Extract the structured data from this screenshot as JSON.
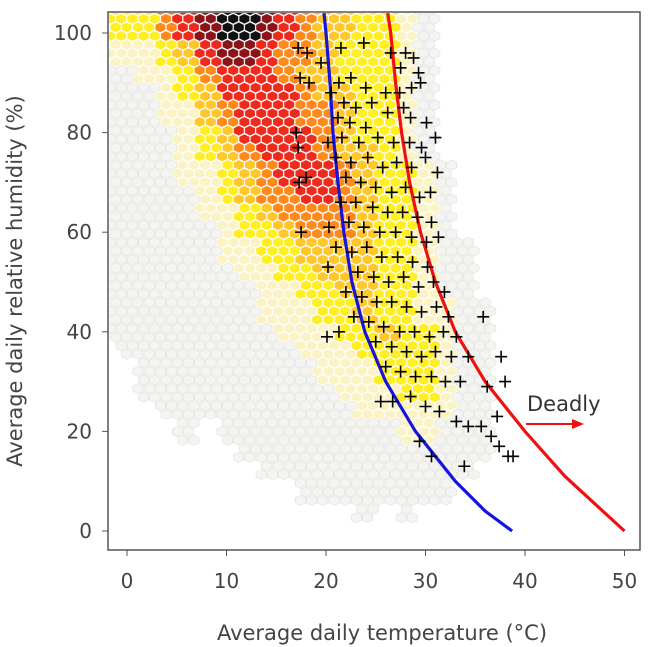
{
  "chart_data": {
    "type": "scatter",
    "xlabel": "Average daily temperature (°C)",
    "ylabel": "Average daily relative humidity (%)",
    "xlim": [
      -2,
      52
    ],
    "ylim": [
      -4,
      104
    ],
    "x_ticks": [
      "0",
      "10",
      "20",
      "30",
      "40",
      "50"
    ],
    "y_ticks": [
      "0",
      "20",
      "40",
      "60",
      "80",
      "100"
    ],
    "grid": false,
    "annotation": "Deadly",
    "density_background": {
      "type": "hexbin",
      "temp_start": -2,
      "temp_step": 2,
      "humidity_levels_top_down": [
        100,
        96,
        92,
        88,
        84,
        80,
        76,
        72,
        68,
        64,
        60,
        56,
        52,
        48,
        44,
        40,
        36,
        32,
        28,
        24,
        20,
        16,
        12,
        8,
        4,
        0
      ],
      "levels": "0 none, 1 trace, 2 pale, 3 yellow, 4 amber, 5 orange, 6 red, 7 dark red, 8 black",
      "rows": [
        "33356788765443321",
        "22234677655433321",
        "11223566654433321",
        "11123466665443321",
        "11122456665543321",
        "11112346666543321",
        "11112345666544321",
        "111122345666543321",
        "111112345566543321",
        "111112234555543321",
        "111111233455543321",
        "1111112233444433211",
        "1111111223344433211",
        "1111111122334433211",
        "11111111222334332211",
        "11111111122233433211",
        "01111111112223333211",
        "00111111111222333211",
        "00111111111122233211",
        "00011111111112222211",
        "00001011111111122111",
        "00000001111111111111",
        "0000000011111111111",
        "000000000011111111",
        "000000000000010100",
        "0"
      ],
      "colors": [
        "#ffffff",
        "#f4f4f0",
        "#fbf3c4",
        "#ffee22",
        "#ffc72a",
        "#ff8a1c",
        "#ee2a1c",
        "#8a1418",
        "#111111"
      ]
    },
    "series": [
      {
        "type": "scatter",
        "marker": "+",
        "color": "#000000",
        "points": [
          [
            17.2,
            97
          ],
          [
            18.1,
            96
          ],
          [
            19.5,
            94
          ],
          [
            21.5,
            97
          ],
          [
            23.8,
            98
          ],
          [
            26.5,
            96
          ],
          [
            28.0,
            96
          ],
          [
            28.8,
            95
          ],
          [
            27.5,
            93
          ],
          [
            29.3,
            92
          ],
          [
            17.4,
            91
          ],
          [
            18.3,
            90
          ],
          [
            21.3,
            90
          ],
          [
            22.5,
            91
          ],
          [
            24.0,
            89
          ],
          [
            26.0,
            88
          ],
          [
            27.4,
            88
          ],
          [
            28.6,
            89
          ],
          [
            29.5,
            90
          ],
          [
            20.5,
            88
          ],
          [
            21.8,
            86
          ],
          [
            23.0,
            85
          ],
          [
            24.6,
            86
          ],
          [
            26.2,
            84
          ],
          [
            27.8,
            85
          ],
          [
            28.5,
            83
          ],
          [
            30.1,
            82
          ],
          [
            21.2,
            83
          ],
          [
            22.4,
            82
          ],
          [
            24.0,
            81
          ],
          [
            17.0,
            80
          ],
          [
            17.2,
            77
          ],
          [
            20.2,
            78
          ],
          [
            21.6,
            79
          ],
          [
            23.3,
            78
          ],
          [
            25.2,
            79
          ],
          [
            26.8,
            78
          ],
          [
            28.4,
            78
          ],
          [
            29.6,
            77
          ],
          [
            31.0,
            79
          ],
          [
            21.0,
            75
          ],
          [
            22.5,
            74
          ],
          [
            24.2,
            75
          ],
          [
            25.7,
            73
          ],
          [
            27.1,
            74
          ],
          [
            28.6,
            73
          ],
          [
            30.0,
            75
          ],
          [
            31.2,
            72
          ],
          [
            22.0,
            71
          ],
          [
            23.5,
            70
          ],
          [
            18.0,
            71
          ],
          [
            17.3,
            70
          ],
          [
            25.0,
            69
          ],
          [
            26.6,
            68
          ],
          [
            28.0,
            69
          ],
          [
            29.4,
            67
          ],
          [
            30.5,
            68
          ],
          [
            21.5,
            66
          ],
          [
            23.0,
            66
          ],
          [
            24.7,
            65
          ],
          [
            26.2,
            64
          ],
          [
            27.7,
            64
          ],
          [
            29.2,
            63
          ],
          [
            30.6,
            62
          ],
          [
            22.3,
            62
          ],
          [
            23.8,
            61
          ],
          [
            17.5,
            60
          ],
          [
            20.3,
            61
          ],
          [
            25.4,
            60
          ],
          [
            27.0,
            60
          ],
          [
            28.6,
            59
          ],
          [
            30.1,
            58
          ],
          [
            31.3,
            59
          ],
          [
            21.0,
            57
          ],
          [
            22.6,
            56
          ],
          [
            24.1,
            57
          ],
          [
            25.6,
            55
          ],
          [
            27.2,
            55
          ],
          [
            28.7,
            54
          ],
          [
            30.2,
            53
          ],
          [
            20.2,
            53
          ],
          [
            23.2,
            52
          ],
          [
            24.8,
            51
          ],
          [
            26.3,
            50
          ],
          [
            27.8,
            51
          ],
          [
            29.3,
            49
          ],
          [
            30.8,
            50
          ],
          [
            31.9,
            48
          ],
          [
            22.0,
            48
          ],
          [
            23.6,
            47
          ],
          [
            25.1,
            46
          ],
          [
            26.6,
            46
          ],
          [
            28.1,
            45
          ],
          [
            29.6,
            44
          ],
          [
            31.1,
            45
          ],
          [
            32.3,
            43
          ],
          [
            35.8,
            43
          ],
          [
            22.8,
            43
          ],
          [
            24.3,
            42
          ],
          [
            25.8,
            41
          ],
          [
            27.4,
            40
          ],
          [
            28.9,
            40
          ],
          [
            30.4,
            39
          ],
          [
            31.8,
            40
          ],
          [
            33.1,
            39
          ],
          [
            20.1,
            39
          ],
          [
            21.3,
            40
          ],
          [
            25.0,
            38
          ],
          [
            26.6,
            37
          ],
          [
            28.1,
            36
          ],
          [
            29.6,
            35
          ],
          [
            31.0,
            36
          ],
          [
            32.6,
            35
          ],
          [
            34.3,
            35
          ],
          [
            37.6,
            35
          ],
          [
            26.0,
            33
          ],
          [
            27.5,
            32
          ],
          [
            29.0,
            31
          ],
          [
            30.6,
            31
          ],
          [
            32.0,
            30
          ],
          [
            33.5,
            30
          ],
          [
            36.2,
            29
          ],
          [
            38.0,
            30
          ],
          [
            25.5,
            26
          ],
          [
            26.7,
            26
          ],
          [
            28.5,
            27
          ],
          [
            30.0,
            25
          ],
          [
            31.4,
            24
          ],
          [
            33.1,
            22
          ],
          [
            34.3,
            21
          ],
          [
            35.6,
            21
          ],
          [
            37.2,
            23
          ],
          [
            36.6,
            19
          ],
          [
            37.4,
            17
          ],
          [
            38.3,
            15
          ],
          [
            38.8,
            15
          ],
          [
            29.4,
            18
          ],
          [
            30.6,
            15
          ],
          [
            33.9,
            13
          ]
        ]
      },
      {
        "type": "line",
        "color": "#1515dd",
        "points": [
          [
            19.8,
            104
          ],
          [
            20.0,
            100
          ],
          [
            20.4,
            90
          ],
          [
            20.7,
            80
          ],
          [
            21.2,
            70
          ],
          [
            21.8,
            60
          ],
          [
            22.6,
            50
          ],
          [
            23.9,
            40
          ],
          [
            26.0,
            30
          ],
          [
            29.0,
            20
          ],
          [
            33.0,
            10
          ],
          [
            36.0,
            4
          ],
          [
            38.7,
            0
          ]
        ]
      },
      {
        "type": "line",
        "color": "#ee1111",
        "points": [
          [
            26.2,
            104
          ],
          [
            26.5,
            100
          ],
          [
            27.0,
            90
          ],
          [
            27.6,
            80
          ],
          [
            28.4,
            70
          ],
          [
            29.5,
            60
          ],
          [
            31.0,
            50
          ],
          [
            33.0,
            40
          ],
          [
            36.0,
            30
          ],
          [
            40.0,
            20
          ],
          [
            44.0,
            11
          ],
          [
            47.0,
            5.5
          ],
          [
            50.0,
            0
          ]
        ]
      }
    ]
  }
}
